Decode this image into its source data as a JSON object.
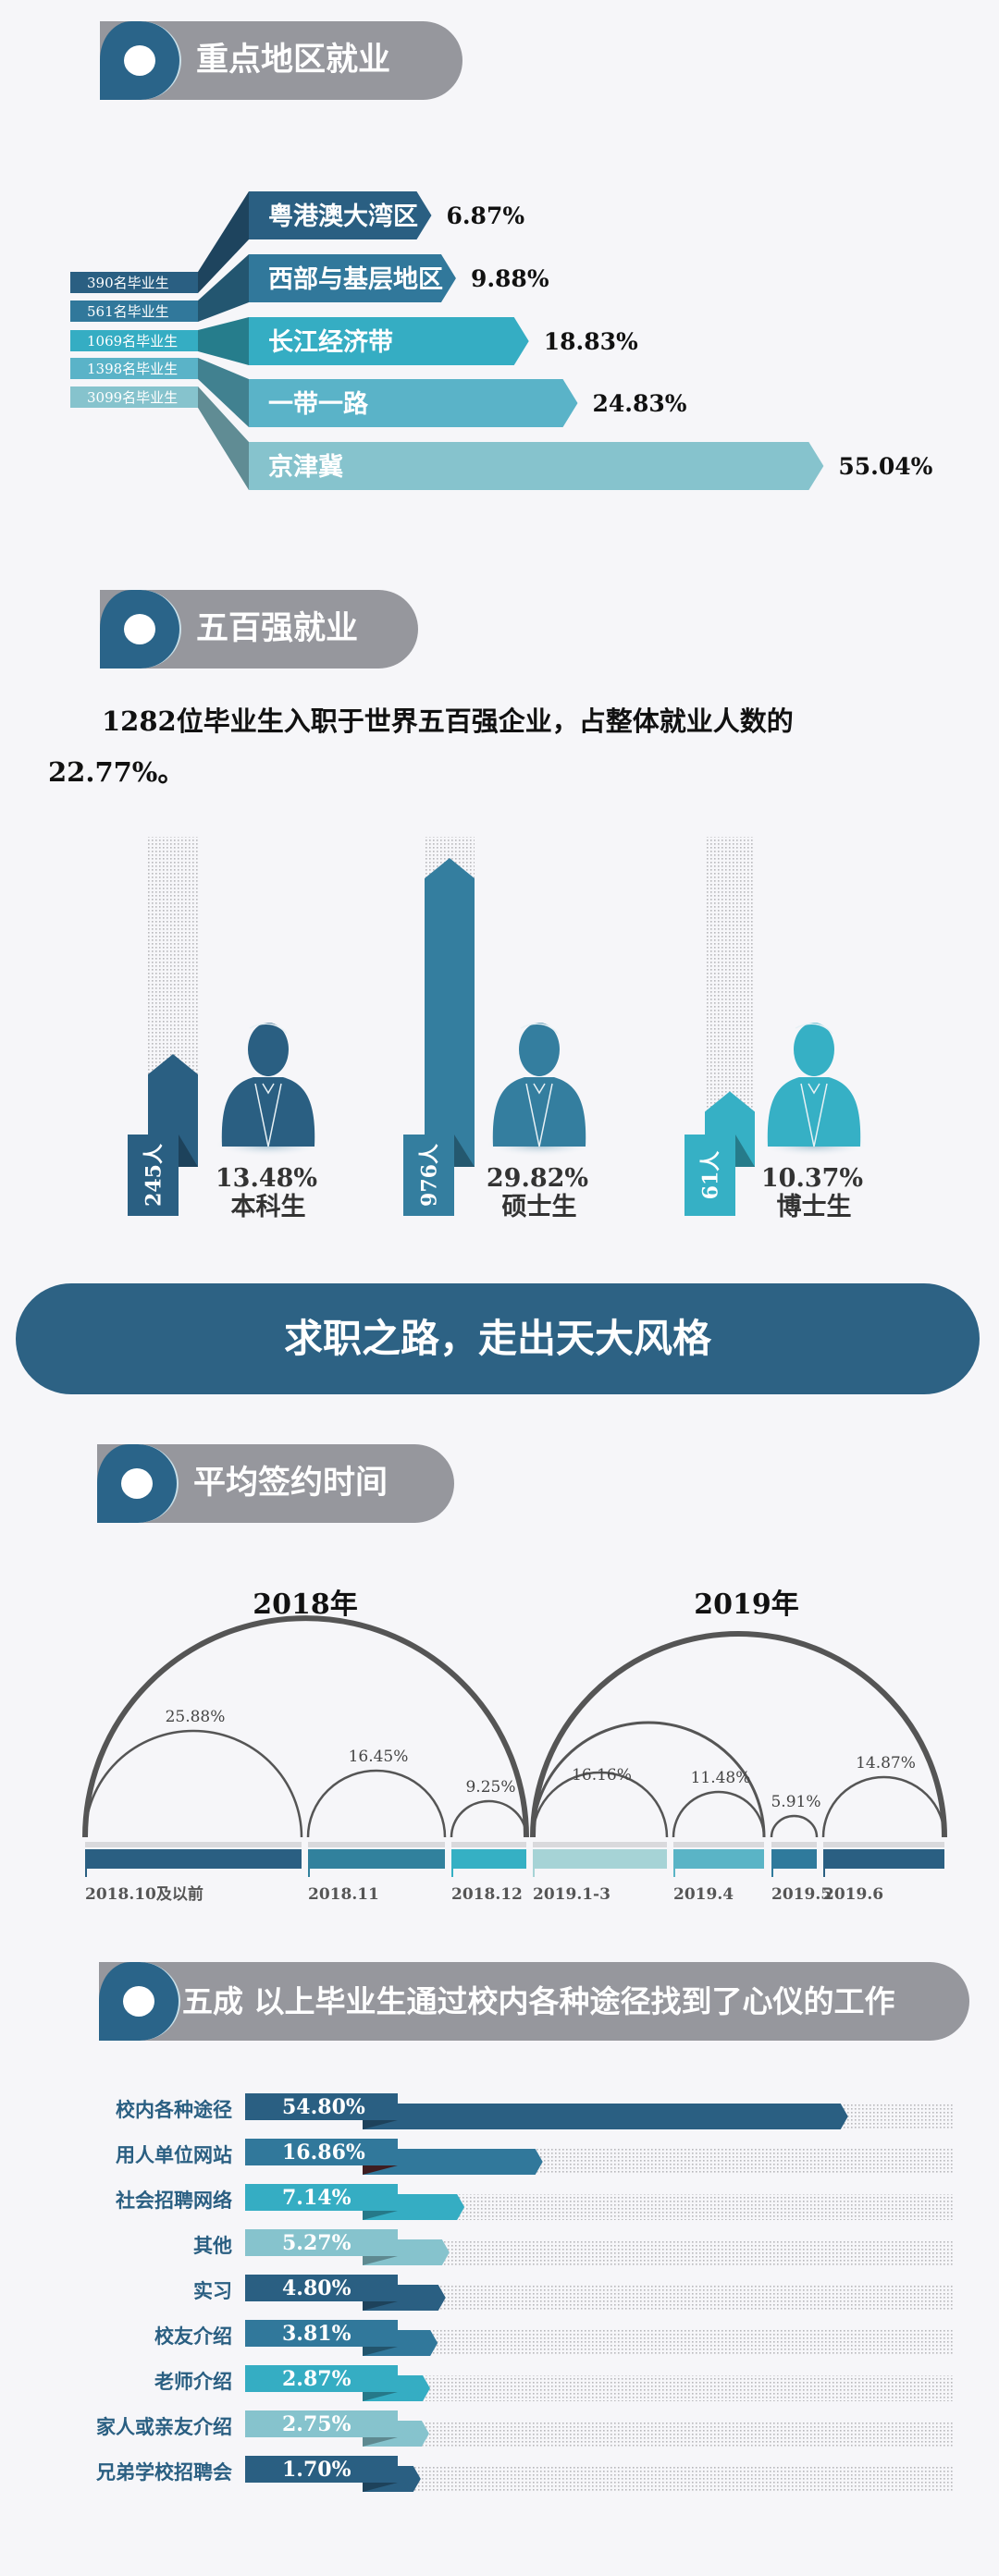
{
  "sections": {
    "regional": {
      "title": "重点地区就业"
    },
    "top500": {
      "title": "五百强就业",
      "description_line1": "1282位毕业生入职于世界五百强企业，占整体就业人数的",
      "description_line2": "22.77%。"
    },
    "banner": {
      "title": "求职之路，走出天大风格"
    },
    "signing": {
      "title": "平均签约时间"
    },
    "channels": {
      "title": "五成 以上毕业生通过校内各种途径找到了心仪的工作"
    }
  },
  "colors": {
    "dark_blue": "#2a5f82",
    "mid_blue": "#31789b",
    "teal": "#35adc3",
    "light_teal": "#86c3cd",
    "header_gray": "#96979d",
    "arc_gray": "#555555"
  },
  "chart_data": [
    {
      "type": "bar",
      "orientation": "horizontal",
      "categories": [
        "粤港澳大湾区",
        "西部与基层地区",
        "长江经济带",
        "一带一路",
        "京津冀"
      ],
      "values": [
        6.87,
        9.88,
        18.83,
        24.83,
        55.04
      ],
      "unit": "%",
      "count_labels": [
        "390名毕业生",
        "561名毕业生",
        "1069名毕业生",
        "1398名毕业生",
        "3099名毕业生"
      ]
    },
    {
      "type": "bar",
      "orientation": "vertical",
      "categories": [
        "本科生",
        "硕士生",
        "博士生"
      ],
      "count_labels": [
        "245人",
        "976人",
        "61人"
      ],
      "values": [
        13.48,
        29.82,
        10.37
      ],
      "unit": "%",
      "icon": "person-icon"
    },
    {
      "type": "bar",
      "style": "arc",
      "groups": [
        {
          "label": "2018年",
          "categories": [
            "2018.10及以前",
            "2018.11",
            "2018.12"
          ],
          "values": [
            25.88,
            16.45,
            9.25
          ]
        },
        {
          "label": "2019年",
          "categories": [
            "2019.1-3",
            "2019.4",
            "2019.5",
            "2019.6"
          ],
          "values": [
            16.16,
            11.48,
            5.91,
            14.87
          ]
        }
      ],
      "unit": "%"
    },
    {
      "type": "bar",
      "orientation": "horizontal",
      "categories": [
        "校内各种途径",
        "用人单位网站",
        "社会招聘网络",
        "其他",
        "实习",
        "校友介绍",
        "老师介绍",
        "家人或亲友介绍",
        "兄弟学校招聘会"
      ],
      "values": [
        54.8,
        16.86,
        7.14,
        5.27,
        4.8,
        3.81,
        2.87,
        2.75,
        1.7
      ],
      "unit": "%"
    }
  ]
}
